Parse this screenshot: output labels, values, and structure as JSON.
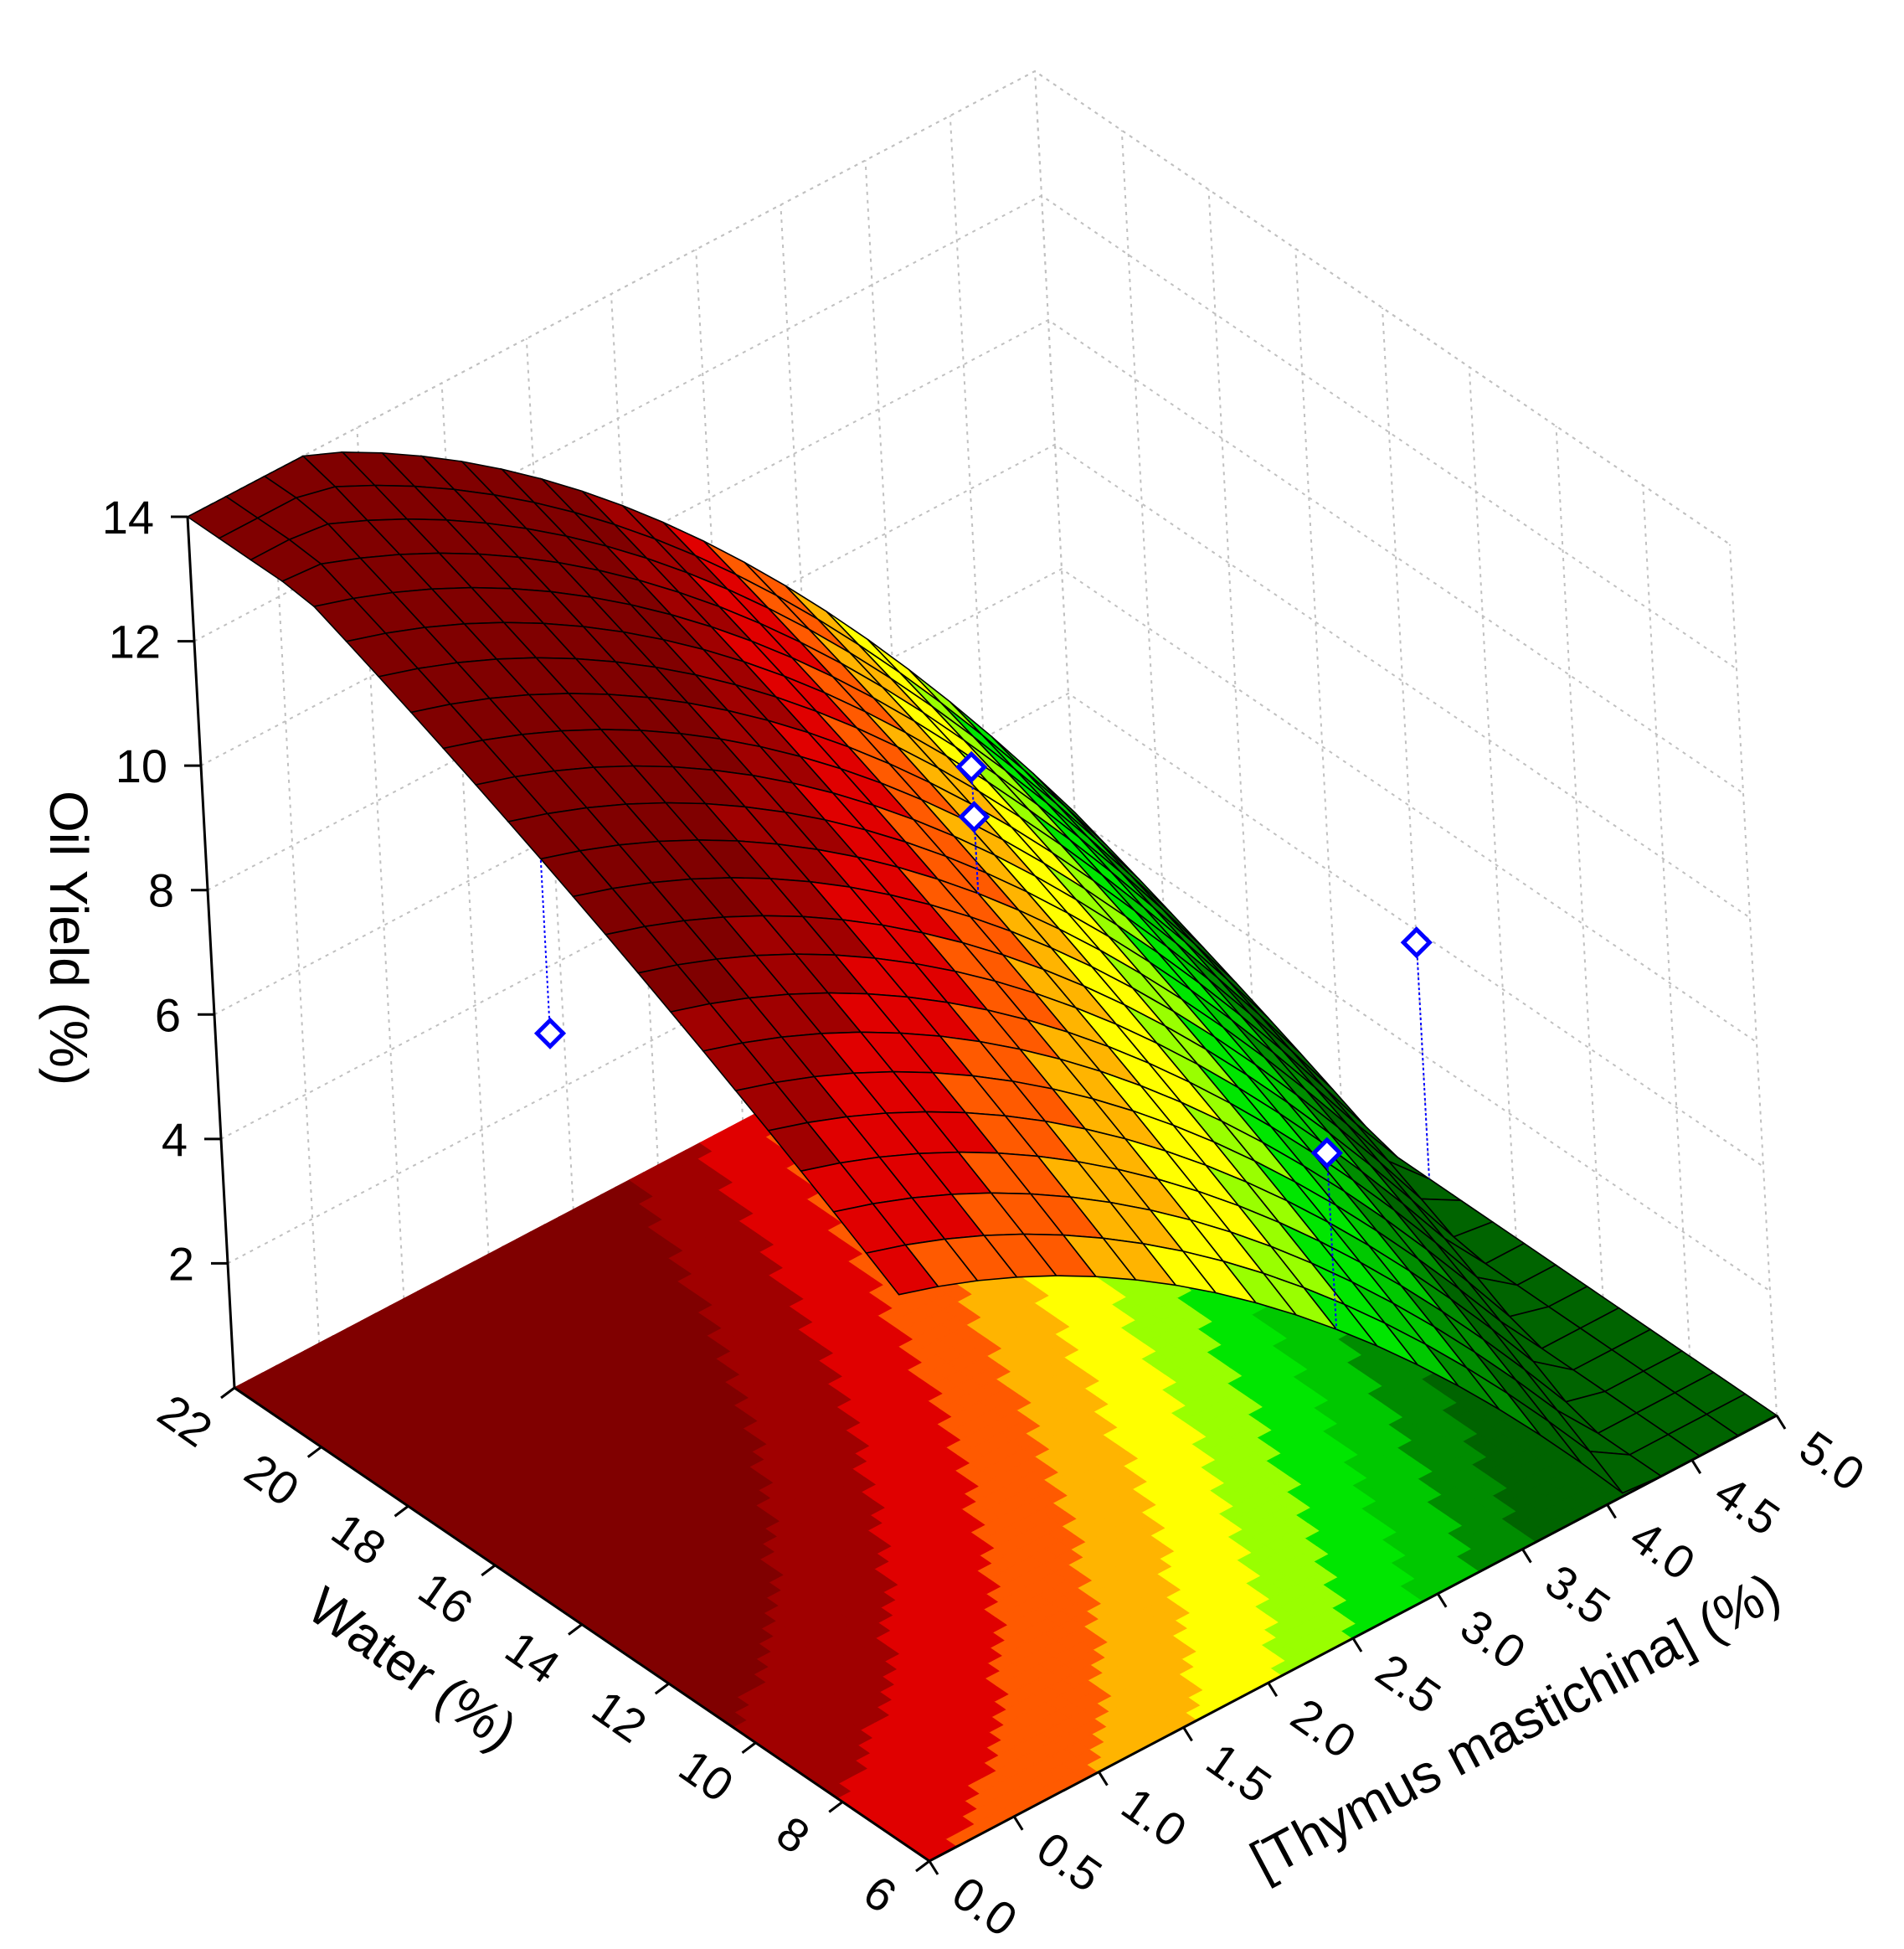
{
  "chart_data": {
    "type": "surface3d",
    "title": "",
    "xlabel": "[Thymus mastichina] (%)",
    "ylabel": "Water (%)",
    "zlabel": "Oil Yield (%)",
    "x_ticks": [
      "0.0",
      "0.5",
      "1.0",
      "1.5",
      "2.0",
      "2.5",
      "3.0",
      "3.5",
      "4.0",
      "4.5",
      "5.0"
    ],
    "y_ticks": [
      "6",
      "8",
      "10",
      "12",
      "14",
      "16",
      "18",
      "20",
      "22"
    ],
    "z_ticks": [
      "2",
      "4",
      "6",
      "8",
      "10",
      "12",
      "14"
    ],
    "xlim": [
      0,
      5
    ],
    "ylim": [
      6,
      22
    ],
    "zlim": [
      0,
      14
    ],
    "grid": true,
    "colors": {
      "levels": [
        "#006400",
        "#008c00",
        "#00c800",
        "#00e600",
        "#99ff00",
        "#ffff00",
        "#ffb400",
        "#ff5a00",
        "#e00000",
        "#a00000",
        "#800000"
      ],
      "level_thresholds": [
        2,
        3,
        4,
        5,
        6,
        7,
        8,
        9,
        10,
        11
      ],
      "mesh": "#000000",
      "points_fill": "#ffffff",
      "points_stroke": "#0000ff",
      "grid": "#c0c0c0"
    },
    "surface_model": {
      "intercept": 6.2,
      "x": -0.78,
      "y": 0.52,
      "x2": -0.35,
      "y2": -0.006,
      "xy": 0.0
    },
    "points": [
      {
        "x": 0.0,
        "y": 14,
        "z": 9.5
      },
      {
        "x": 2.5,
        "y": 6,
        "z": 7.8
      },
      {
        "x": 2.5,
        "y": 14,
        "z": 10.2
      },
      {
        "x": 2.5,
        "y": 14,
        "z": 9.4
      },
      {
        "x": 5.0,
        "y": 14,
        "z": 3.8
      }
    ]
  }
}
